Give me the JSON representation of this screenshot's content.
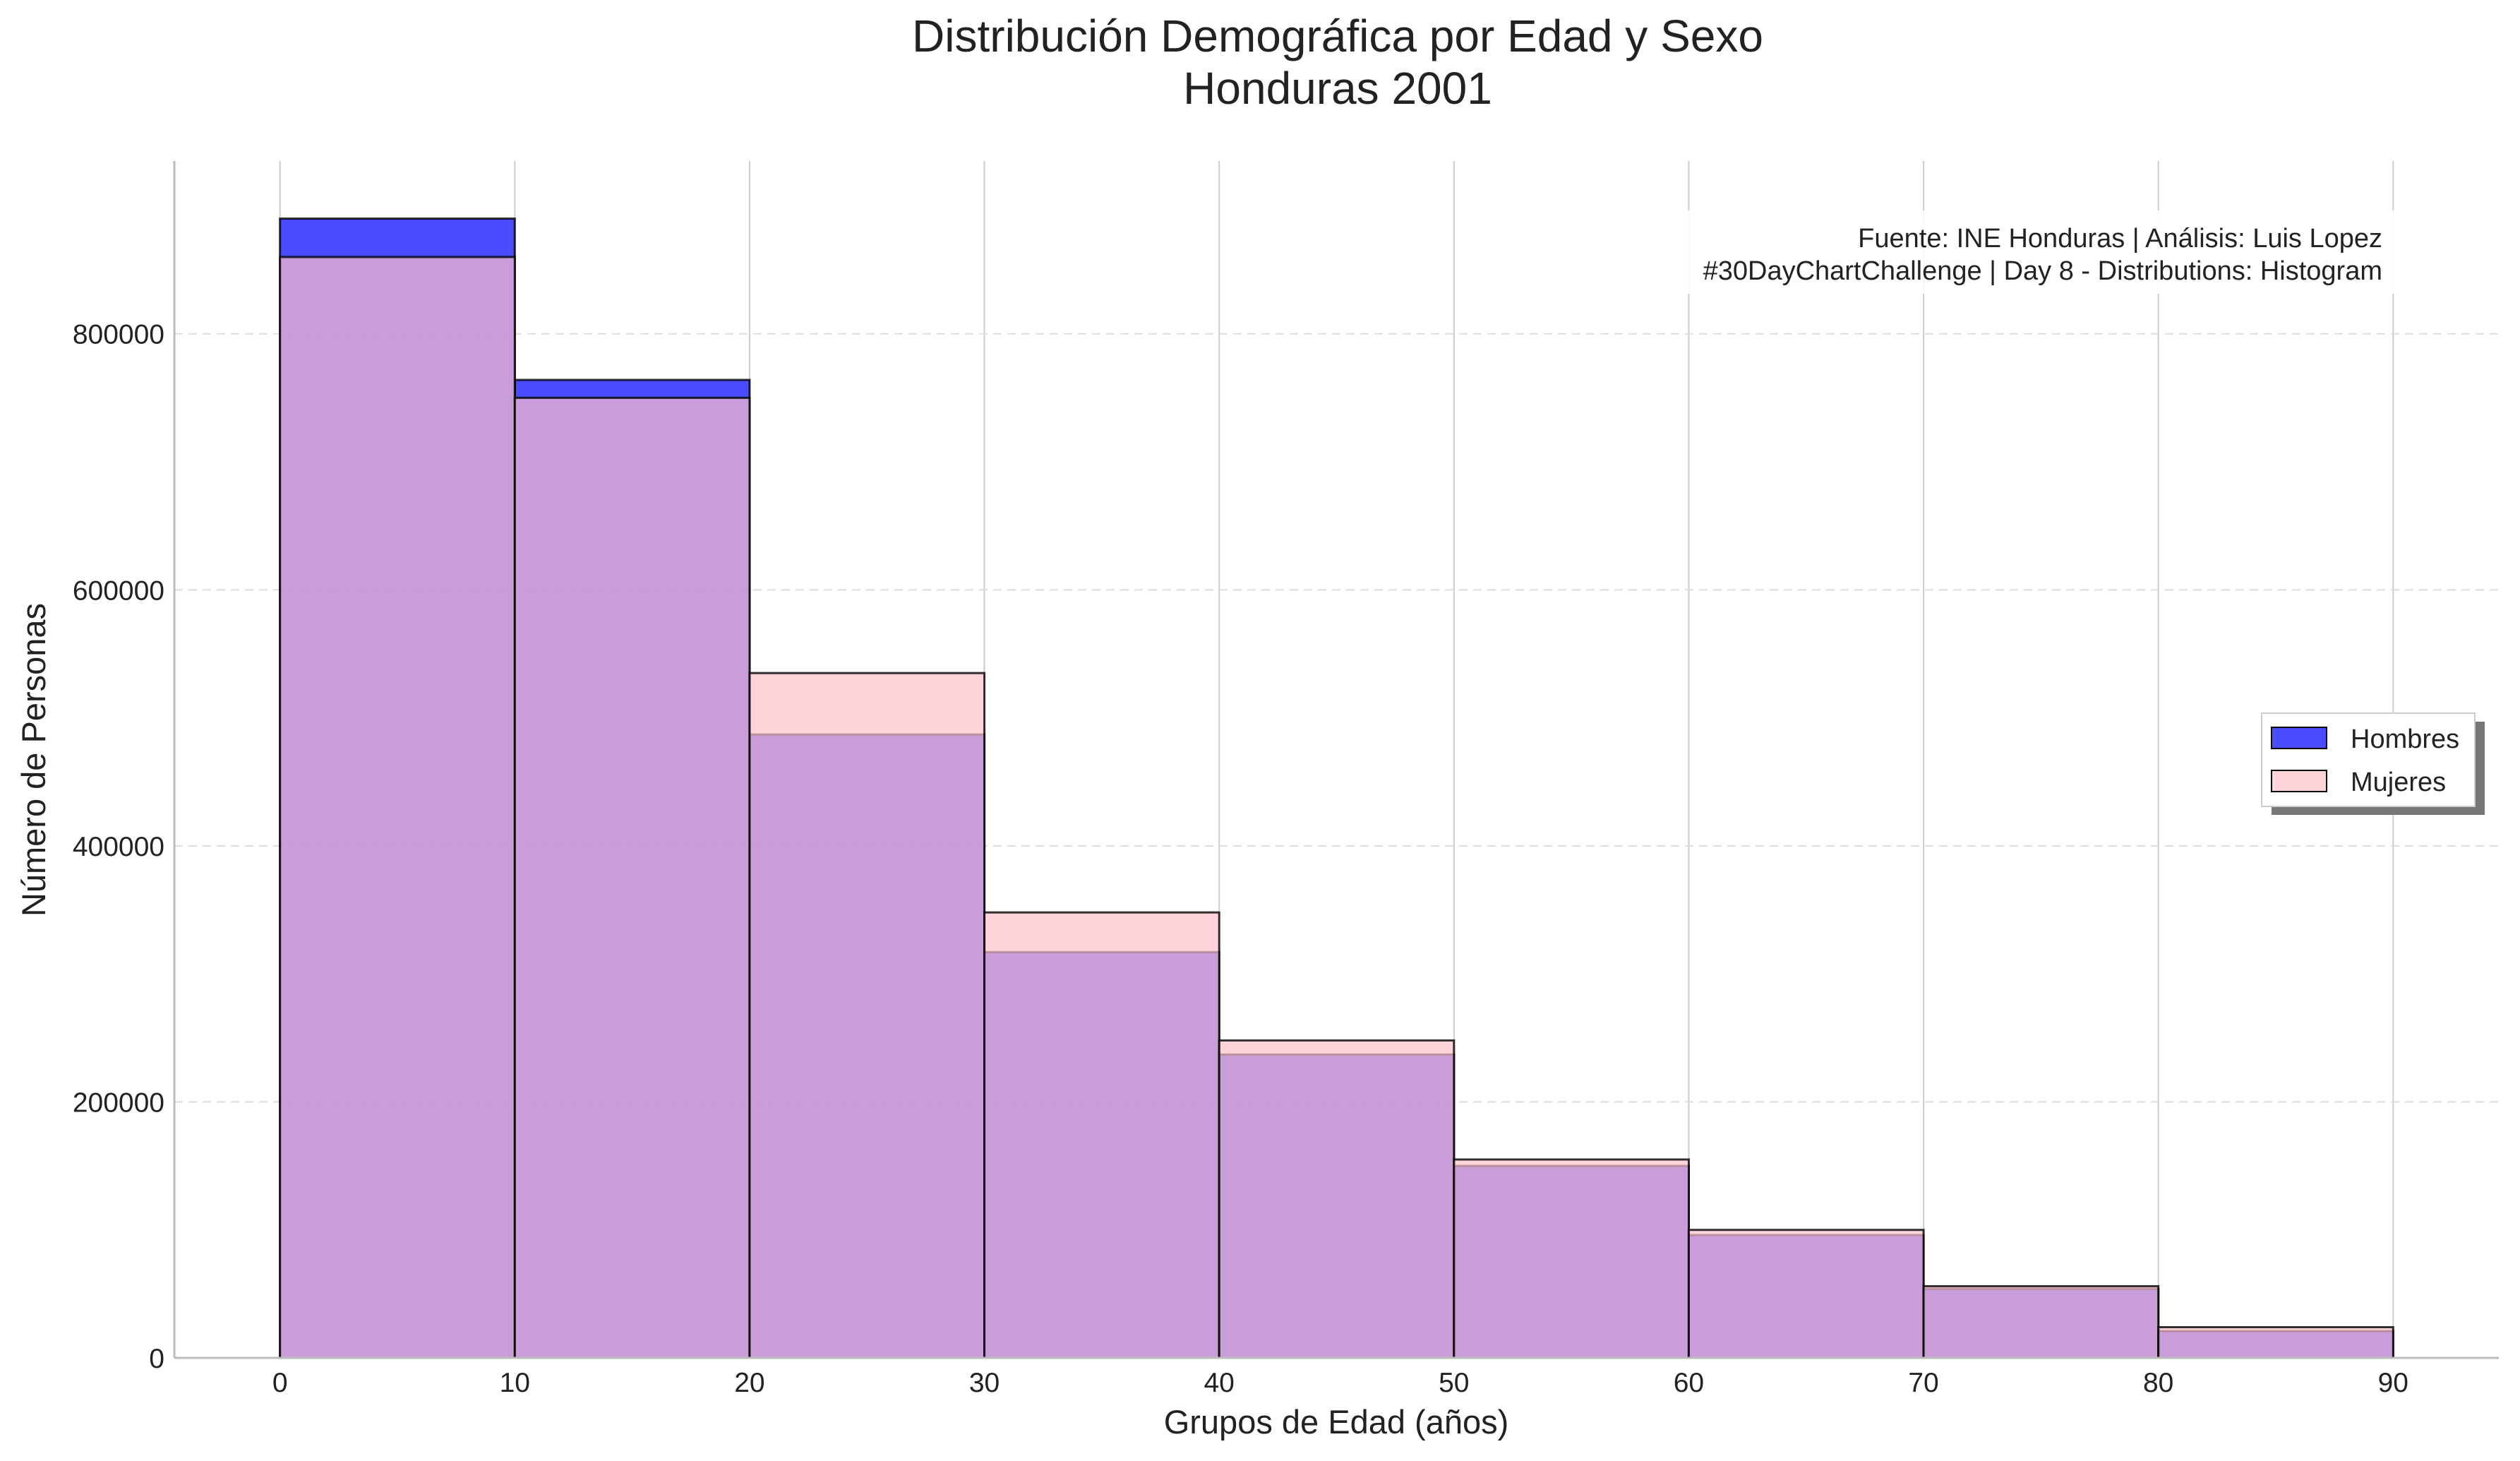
{
  "chart_data": {
    "type": "bar",
    "title": "Distribución Demográfica por Edad y Sexo",
    "subtitle": "Honduras 2001",
    "xlabel": "Grupos de Edad (años)",
    "ylabel": "Número de Personas",
    "bin_edges": [
      0,
      10,
      20,
      30,
      40,
      50,
      60,
      70,
      80,
      90
    ],
    "xticks": [
      0,
      10,
      20,
      30,
      40,
      50,
      60,
      70,
      80,
      90
    ],
    "yticks": [
      0,
      200000,
      400000,
      600000,
      800000
    ],
    "xlim": [
      -4.5,
      94.5
    ],
    "ylim": [
      0,
      935000
    ],
    "grid": true,
    "legend_position": "right",
    "annotation": {
      "line1": "Fuente: INE Honduras | Análisis: Luis Lopez",
      "line2": "#30DayChartChallenge | Day 8 - Distributions: Histogram"
    },
    "series": [
      {
        "name": "Hombres",
        "color": "#0000ff",
        "opacity": 0.7,
        "values": [
          890000,
          764000,
          487000,
          317000,
          237000,
          150000,
          96000,
          54000,
          21000
        ]
      },
      {
        "name": "Mujeres",
        "color": "#ffc0cb",
        "opacity": 0.7,
        "values": [
          860000,
          750000,
          535000,
          348000,
          248000,
          155000,
          100000,
          56000,
          24000
        ]
      }
    ]
  }
}
